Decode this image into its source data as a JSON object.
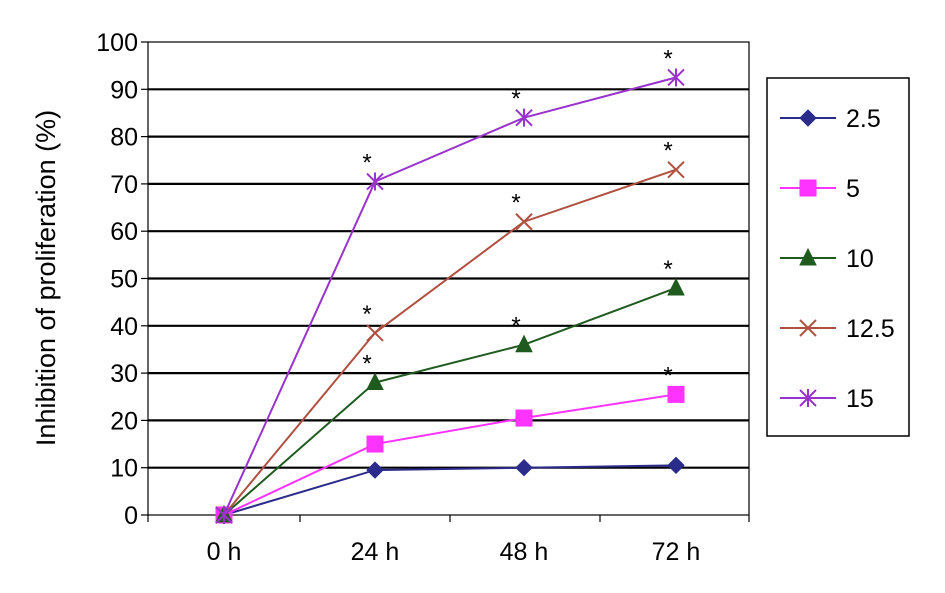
{
  "chart_data": {
    "type": "line",
    "title": "",
    "xlabel": "",
    "ylabel": "Inhibition of proliferation (%)",
    "categories": [
      "0 h",
      "24 h",
      "48 h",
      "72 h"
    ],
    "ylim": [
      0,
      100
    ],
    "yticks": [
      0,
      10,
      20,
      30,
      40,
      50,
      60,
      70,
      80,
      90,
      100
    ],
    "grid": true,
    "legend_position": "right",
    "series": [
      {
        "name": "2.5",
        "values": [
          0,
          9.5,
          10,
          10.5
        ],
        "color": "#2b2b8c",
        "marker": "diamond",
        "significance": [
          false,
          false,
          false,
          false
        ]
      },
      {
        "name": "5",
        "values": [
          0,
          15,
          20.5,
          25.5
        ],
        "color": "#ff33ff",
        "marker": "square",
        "significance": [
          false,
          false,
          false,
          true
        ]
      },
      {
        "name": "10",
        "values": [
          0,
          28,
          36,
          48
        ],
        "color": "#1f5a1f",
        "marker": "triangle",
        "significance": [
          false,
          true,
          true,
          true
        ]
      },
      {
        "name": "12.5",
        "values": [
          0,
          38.5,
          62,
          73
        ],
        "color": "#b05040",
        "marker": "x",
        "significance": [
          false,
          true,
          true,
          true
        ]
      },
      {
        "name": "15",
        "values": [
          0,
          70.5,
          84,
          92.5
        ],
        "color": "#9933cc",
        "marker": "star",
        "significance": [
          false,
          true,
          true,
          true
        ]
      }
    ],
    "significance_symbol": "*"
  }
}
